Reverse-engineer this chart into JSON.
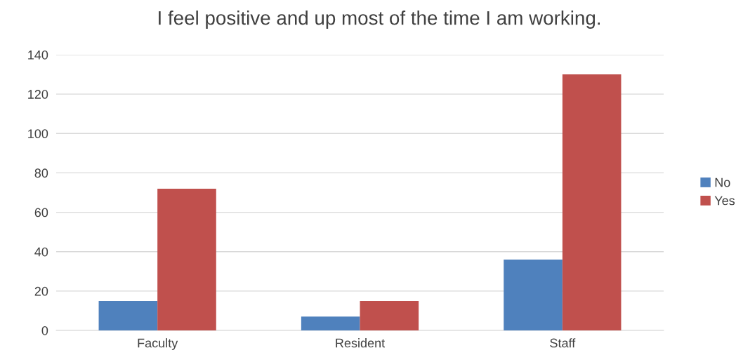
{
  "chart_data": {
    "type": "bar",
    "title": "I feel positive and up most of the time I am working.",
    "categories": [
      "Faculty",
      "Resident",
      "Staff"
    ],
    "series": [
      {
        "name": "No",
        "color": "#4f81bd",
        "values": [
          15,
          7,
          36
        ]
      },
      {
        "name": "Yes",
        "color": "#c0504d",
        "values": [
          72,
          15,
          130
        ]
      }
    ],
    "ylim": [
      0,
      140
    ],
    "yticks": [
      0,
      20,
      40,
      60,
      80,
      100,
      120,
      140
    ],
    "grid": "y",
    "legend": "right"
  }
}
